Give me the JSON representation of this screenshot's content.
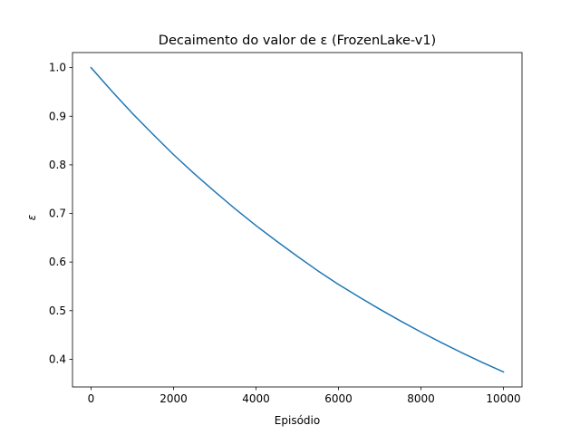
{
  "chart_data": {
    "type": "line",
    "title": "Decaimento do valor de ε (FrozenLake-v1)",
    "xlabel": "Episódio",
    "ylabel": "ε",
    "xlim": [
      -450,
      10450
    ],
    "ylim": [
      0.343,
      1.031
    ],
    "xticks": [
      0,
      2000,
      4000,
      6000,
      8000,
      10000
    ],
    "xtick_labels": [
      "0",
      "2000",
      "4000",
      "6000",
      "8000",
      "10000"
    ],
    "yticks": [
      0.4,
      0.5,
      0.6,
      0.7,
      0.8,
      0.9,
      1.0
    ],
    "ytick_labels": [
      "0.4",
      "0.5",
      "0.6",
      "0.7",
      "0.8",
      "0.9",
      "1.0"
    ],
    "grid": false,
    "series": [
      {
        "color": "#1f77b4",
        "x": [
          0,
          500,
          1000,
          1500,
          2000,
          2500,
          3000,
          3500,
          4000,
          4500,
          5000,
          5500,
          6000,
          6500,
          7000,
          7500,
          8000,
          8500,
          9000,
          9500,
          10000
        ],
        "y": [
          1.0,
          0.952,
          0.906,
          0.863,
          0.821,
          0.782,
          0.745,
          0.709,
          0.675,
          0.643,
          0.612,
          0.582,
          0.554,
          0.528,
          0.503,
          0.479,
          0.456,
          0.434,
          0.413,
          0.393,
          0.374
        ]
      }
    ]
  }
}
